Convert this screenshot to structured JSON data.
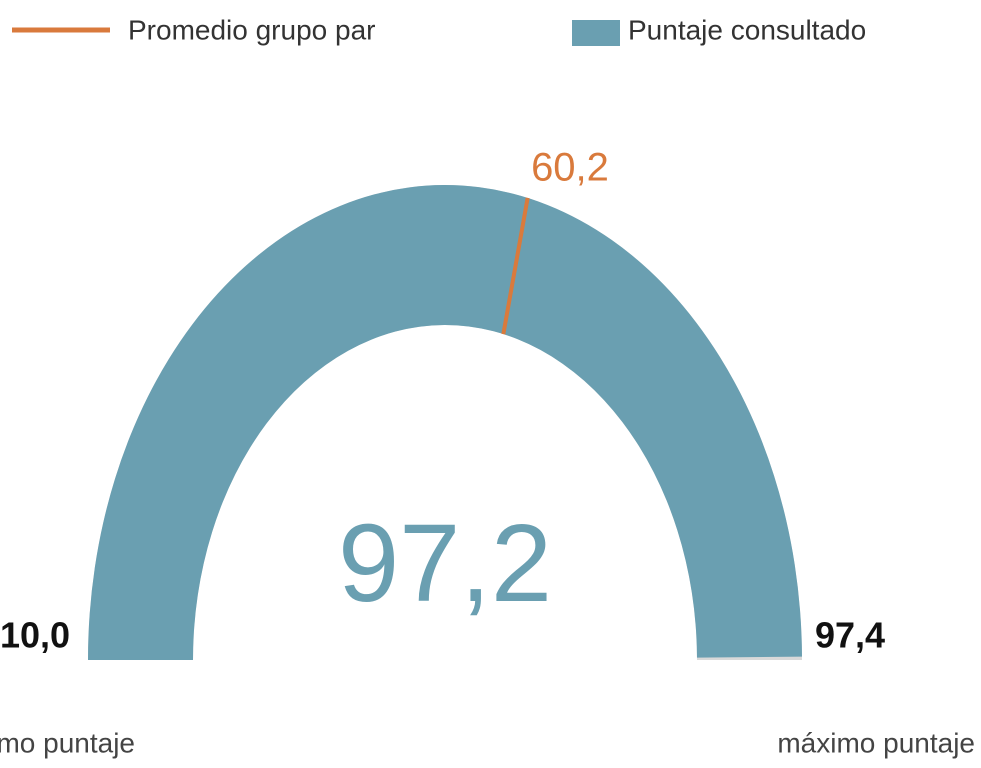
{
  "chart_data": {
    "type": "gauge",
    "min": 10.0,
    "min_label": "10,0",
    "max": 97.4,
    "max_label": "97,4",
    "value": 97.2,
    "value_label": "97,2",
    "target": 60.2,
    "target_label": "60,2",
    "min_caption": "mínimo puntaje",
    "max_caption": "máximo puntaje",
    "series": [
      {
        "name": "Promedio grupo par",
        "color": "#d97a3c"
      },
      {
        "name": "Puntaje consultado",
        "color": "#6a9fb1"
      }
    ]
  }
}
